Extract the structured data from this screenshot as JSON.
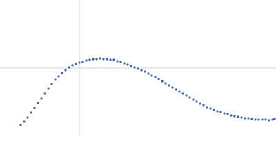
{
  "chart_data": {
    "type": "scatter",
    "color": "#3a66b5",
    "grid": true,
    "xlim": [
      0,
      400
    ],
    "ylim": [
      0,
      200
    ],
    "xticks": [
      115
    ],
    "yticks": [
      101
    ],
    "x": [
      30,
      35,
      40,
      45,
      50,
      55,
      60,
      65,
      70,
      75,
      80,
      85,
      90,
      95,
      100,
      105,
      110,
      115,
      120,
      125,
      130,
      135,
      140,
      145,
      150,
      155,
      160,
      165,
      170,
      175,
      180,
      185,
      190,
      195,
      200,
      205,
      210,
      215,
      220,
      225,
      230,
      235,
      240,
      245,
      250,
      255,
      260,
      265,
      270,
      275,
      280,
      285,
      290,
      295,
      300,
      305,
      310,
      315,
      320,
      325,
      330,
      335,
      340,
      345,
      350,
      355,
      360,
      365,
      370,
      375,
      380,
      385,
      390,
      395,
      398
    ],
    "values": [
      18,
      23,
      29,
      36,
      43,
      50,
      57,
      64,
      71,
      78,
      84,
      89,
      94,
      98,
      102,
      105,
      107,
      109,
      110,
      112,
      113,
      114,
      114,
      115,
      114,
      114,
      113,
      113,
      111,
      110,
      108,
      106,
      104,
      102,
      100,
      98,
      96,
      93,
      90,
      88,
      85,
      82,
      79,
      76,
      73,
      70,
      67,
      64,
      61,
      58,
      55,
      52,
      49,
      47,
      44,
      42,
      40,
      38,
      37,
      35,
      34,
      32,
      31,
      30,
      29,
      28,
      28,
      27,
      26,
      26,
      26,
      26,
      25,
      26,
      27
    ]
  }
}
